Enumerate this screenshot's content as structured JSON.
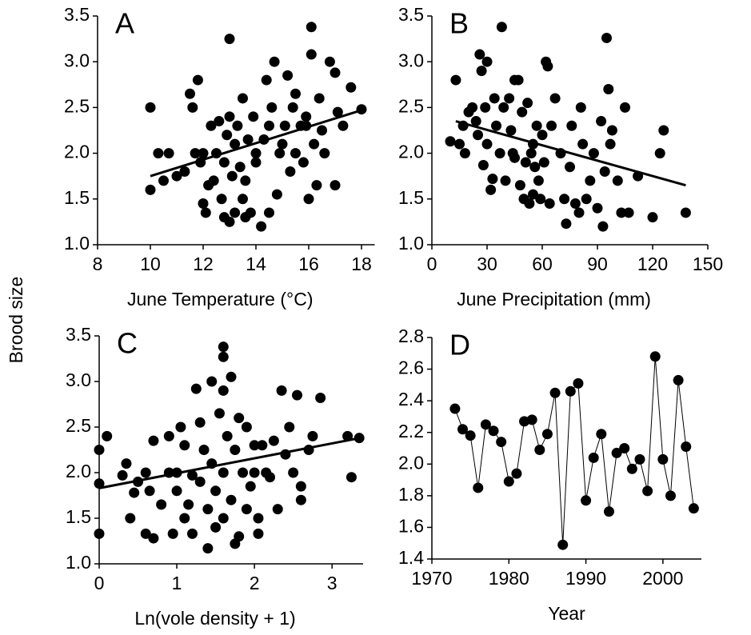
{
  "ylabel": "Brood size",
  "chart_data": [
    {
      "type": "scatter",
      "panel": "A",
      "xlabel": "June Temperature (°C)",
      "xlim": [
        8,
        18.5
      ],
      "xticks": [
        8,
        10,
        12,
        14,
        16,
        18
      ],
      "ylim": [
        1,
        3.5
      ],
      "yticks": [
        {
          "value": 1,
          "label": "1.0"
        },
        1.5,
        {
          "value": 2,
          "label": "2.0"
        },
        2.5,
        {
          "value": 3,
          "label": "3.0"
        },
        3.5
      ],
      "color": "#000000",
      "x": [
        10,
        10,
        10.3,
        10.5,
        10.7,
        11,
        11.3,
        11.5,
        11.6,
        11.7,
        11.8,
        11.9,
        12,
        12,
        12.1,
        12.3,
        12.4,
        12.5,
        12.6,
        12.7,
        12.8,
        12.8,
        12.9,
        13,
        13,
        13,
        13.1,
        13.2,
        13.2,
        13.3,
        13.4,
        13.5,
        13.5,
        13.6,
        13.7,
        13.8,
        13.9,
        14,
        14,
        14.2,
        14.3,
        14.4,
        14.5,
        14.5,
        14.6,
        14.7,
        14.8,
        15,
        15.1,
        15.2,
        15.3,
        15.4,
        15.5,
        15.5,
        15.7,
        15.8,
        15.9,
        16,
        16.1,
        16.1,
        16.2,
        16.3,
        16.4,
        16.5,
        16.6,
        16.8,
        17,
        17,
        17.1,
        17.3,
        17.6,
        18,
        12.2,
        13.6,
        14.9,
        15.9
      ],
      "values": [
        2.5,
        1.6,
        2.0,
        1.7,
        2.0,
        1.75,
        1.8,
        2.65,
        2.5,
        2.0,
        2.8,
        1.9,
        1.45,
        2.0,
        1.35,
        2.3,
        1.7,
        2.0,
        2.35,
        1.5,
        1.3,
        1.9,
        2.2,
        3.25,
        1.25,
        2.4,
        1.75,
        2.1,
        1.35,
        2.3,
        1.85,
        1.5,
        2.6,
        1.3,
        2.15,
        1.35,
        2.4,
        1.9,
        2.0,
        1.2,
        2.15,
        2.8,
        1.35,
        2.3,
        2.5,
        3.0,
        1.55,
        2.1,
        2.3,
        2.85,
        1.8,
        2.5,
        2.0,
        2.65,
        2.3,
        1.9,
        2.3,
        1.5,
        3.38,
        3.08,
        2.1,
        1.65,
        2.6,
        2.25,
        2.0,
        3.0,
        2.88,
        1.65,
        2.45,
        2.3,
        2.72,
        2.48,
        1.65,
        1.7,
        2.0,
        2.4
      ],
      "trend": {
        "x": [
          10,
          18
        ],
        "values": [
          1.75,
          2.47
        ]
      }
    },
    {
      "type": "scatter",
      "panel": "B",
      "xlabel": "June Precipitation (mm)",
      "xlim": [
        0,
        150
      ],
      "xticks": [
        0,
        30,
        60,
        90,
        120,
        150
      ],
      "ylim": [
        1,
        3.5
      ],
      "yticks": [
        {
          "value": 1,
          "label": "1.0"
        },
        1.5,
        {
          "value": 2,
          "label": "2.0"
        },
        2.5,
        {
          "value": 3,
          "label": "3.0"
        },
        3.5
      ],
      "color": "#000000",
      "x": [
        10,
        13,
        15,
        17,
        18,
        20,
        22,
        24,
        25,
        26,
        27,
        28,
        29,
        30,
        30,
        32,
        33,
        34,
        35,
        37,
        38,
        39,
        40,
        42,
        43,
        44,
        45,
        47,
        48,
        49,
        50,
        51,
        52,
        53,
        54,
        55,
        56,
        57,
        58,
        59,
        60,
        61,
        62,
        63,
        64,
        65,
        67,
        70,
        72,
        73,
        75,
        76,
        78,
        80,
        81,
        82,
        84,
        86,
        88,
        90,
        92,
        93,
        94,
        95,
        96,
        97,
        98,
        101,
        103,
        105,
        107,
        112,
        120,
        124,
        126,
        138,
        45,
        55
      ],
      "values": [
        2.13,
        2.8,
        2.1,
        2.3,
        2.0,
        2.45,
        2.5,
        2.35,
        2.2,
        3.08,
        2.9,
        1.87,
        2.5,
        3.0,
        2.1,
        1.6,
        1.72,
        2.6,
        2.3,
        2.0,
        3.38,
        2.5,
        1.7,
        2.6,
        2.25,
        2.0,
        2.8,
        2.8,
        1.65,
        2.45,
        1.5,
        1.9,
        2.55,
        1.45,
        2.0,
        2.1,
        1.85,
        2.3,
        1.7,
        1.5,
        2.2,
        1.9,
        3.0,
        2.95,
        1.45,
        2.3,
        2.6,
        2.0,
        1.5,
        1.23,
        1.85,
        2.3,
        1.45,
        1.35,
        2.5,
        2.1,
        1.5,
        1.7,
        2.0,
        1.4,
        2.35,
        1.2,
        1.8,
        3.26,
        2.7,
        2.1,
        2.25,
        1.7,
        1.35,
        2.5,
        1.35,
        1.75,
        1.3,
        2.0,
        2.25,
        1.35,
        1.95,
        1.55
      ],
      "trend": {
        "x": [
          13,
          138
        ],
        "values": [
          2.35,
          1.65
        ]
      }
    },
    {
      "type": "scatter",
      "panel": "C",
      "xlabel": "Ln(vole density + 1)",
      "xlim": [
        0,
        3.4
      ],
      "xticks": [
        0,
        1,
        2,
        3
      ],
      "ylim": [
        1,
        3.5
      ],
      "yticks": [
        {
          "value": 1,
          "label": "1.0"
        },
        1.5,
        {
          "value": 2,
          "label": "2.0"
        },
        2.5,
        {
          "value": 3,
          "label": "3.0"
        },
        3.5
      ],
      "color": "#000000",
      "x": [
        0,
        0,
        0,
        0.1,
        0.3,
        0.35,
        0.4,
        0.45,
        0.5,
        0.6,
        0.6,
        0.65,
        0.7,
        0.7,
        0.8,
        0.9,
        0.9,
        0.95,
        1,
        1,
        1.05,
        1.1,
        1.1,
        1.15,
        1.2,
        1.2,
        1.25,
        1.3,
        1.35,
        1.4,
        1.4,
        1.45,
        1.45,
        1.5,
        1.5,
        1.55,
        1.6,
        1.6,
        1.6,
        1.6,
        1.6,
        1.65,
        1.7,
        1.7,
        1.75,
        1.75,
        1.8,
        1.8,
        1.85,
        1.9,
        1.9,
        1.95,
        2,
        2,
        2.05,
        2.05,
        2.1,
        2.2,
        2.25,
        2.3,
        2.35,
        2.4,
        2.45,
        2.5,
        2.55,
        2.6,
        2.6,
        2.7,
        2.75,
        2.85,
        3.2,
        3.25,
        3.35,
        2.15,
        1.3
      ],
      "values": [
        2.25,
        1.88,
        1.33,
        2.4,
        1.97,
        2.1,
        1.5,
        1.78,
        1.9,
        2.0,
        1.33,
        1.8,
        2.35,
        1.28,
        1.65,
        2.0,
        2.4,
        1.33,
        1.8,
        2.0,
        2.5,
        1.5,
        2.3,
        1.65,
        1.33,
        1.97,
        2.92,
        1.9,
        2.25,
        1.17,
        1.6,
        2.1,
        3.0,
        1.4,
        1.8,
        2.65,
        3.38,
        3.27,
        2.9,
        2.0,
        1.5,
        2.4,
        3.05,
        1.7,
        1.22,
        2.25,
        2.6,
        1.3,
        2.0,
        2.5,
        1.6,
        1.85,
        2.0,
        2.3,
        1.33,
        1.5,
        2.3,
        1.95,
        2.35,
        1.6,
        2.9,
        2.2,
        2.5,
        2.0,
        2.85,
        1.7,
        1.85,
        2.25,
        2.4,
        2.82,
        2.4,
        1.95,
        2.38,
        2.0,
        2.55
      ],
      "trend": {
        "x": [
          0,
          3.3
        ],
        "values": [
          1.83,
          2.37
        ]
      }
    },
    {
      "type": "line",
      "panel": "D",
      "xlabel": "Year",
      "xlim": [
        1970,
        2005
      ],
      "xticks": [
        1970,
        1980,
        1990,
        2000
      ],
      "ylim": [
        1.4,
        2.8
      ],
      "yticks": [
        1.4,
        1.6,
        1.8,
        {
          "value": 2,
          "label": "2.0"
        },
        2.2,
        2.4,
        2.6,
        2.8
      ],
      "color": "#000000",
      "x": [
        1973,
        1974,
        1975,
        1976,
        1977,
        1978,
        1979,
        1980,
        1981,
        1982,
        1983,
        1984,
        1985,
        1986,
        1987,
        1988,
        1989,
        1990,
        1991,
        1992,
        1993,
        1994,
        1995,
        1996,
        1997,
        1998,
        1999,
        2000,
        2001,
        2002,
        2003,
        2004
      ],
      "values": [
        2.35,
        2.22,
        2.18,
        1.85,
        2.25,
        2.21,
        2.14,
        1.89,
        1.94,
        2.27,
        2.28,
        2.09,
        2.19,
        2.45,
        1.49,
        2.46,
        2.51,
        1.77,
        2.04,
        2.19,
        1.7,
        2.07,
        2.1,
        1.97,
        2.03,
        1.83,
        2.68,
        2.03,
        1.8,
        2.53,
        2.11,
        1.72
      ]
    }
  ]
}
